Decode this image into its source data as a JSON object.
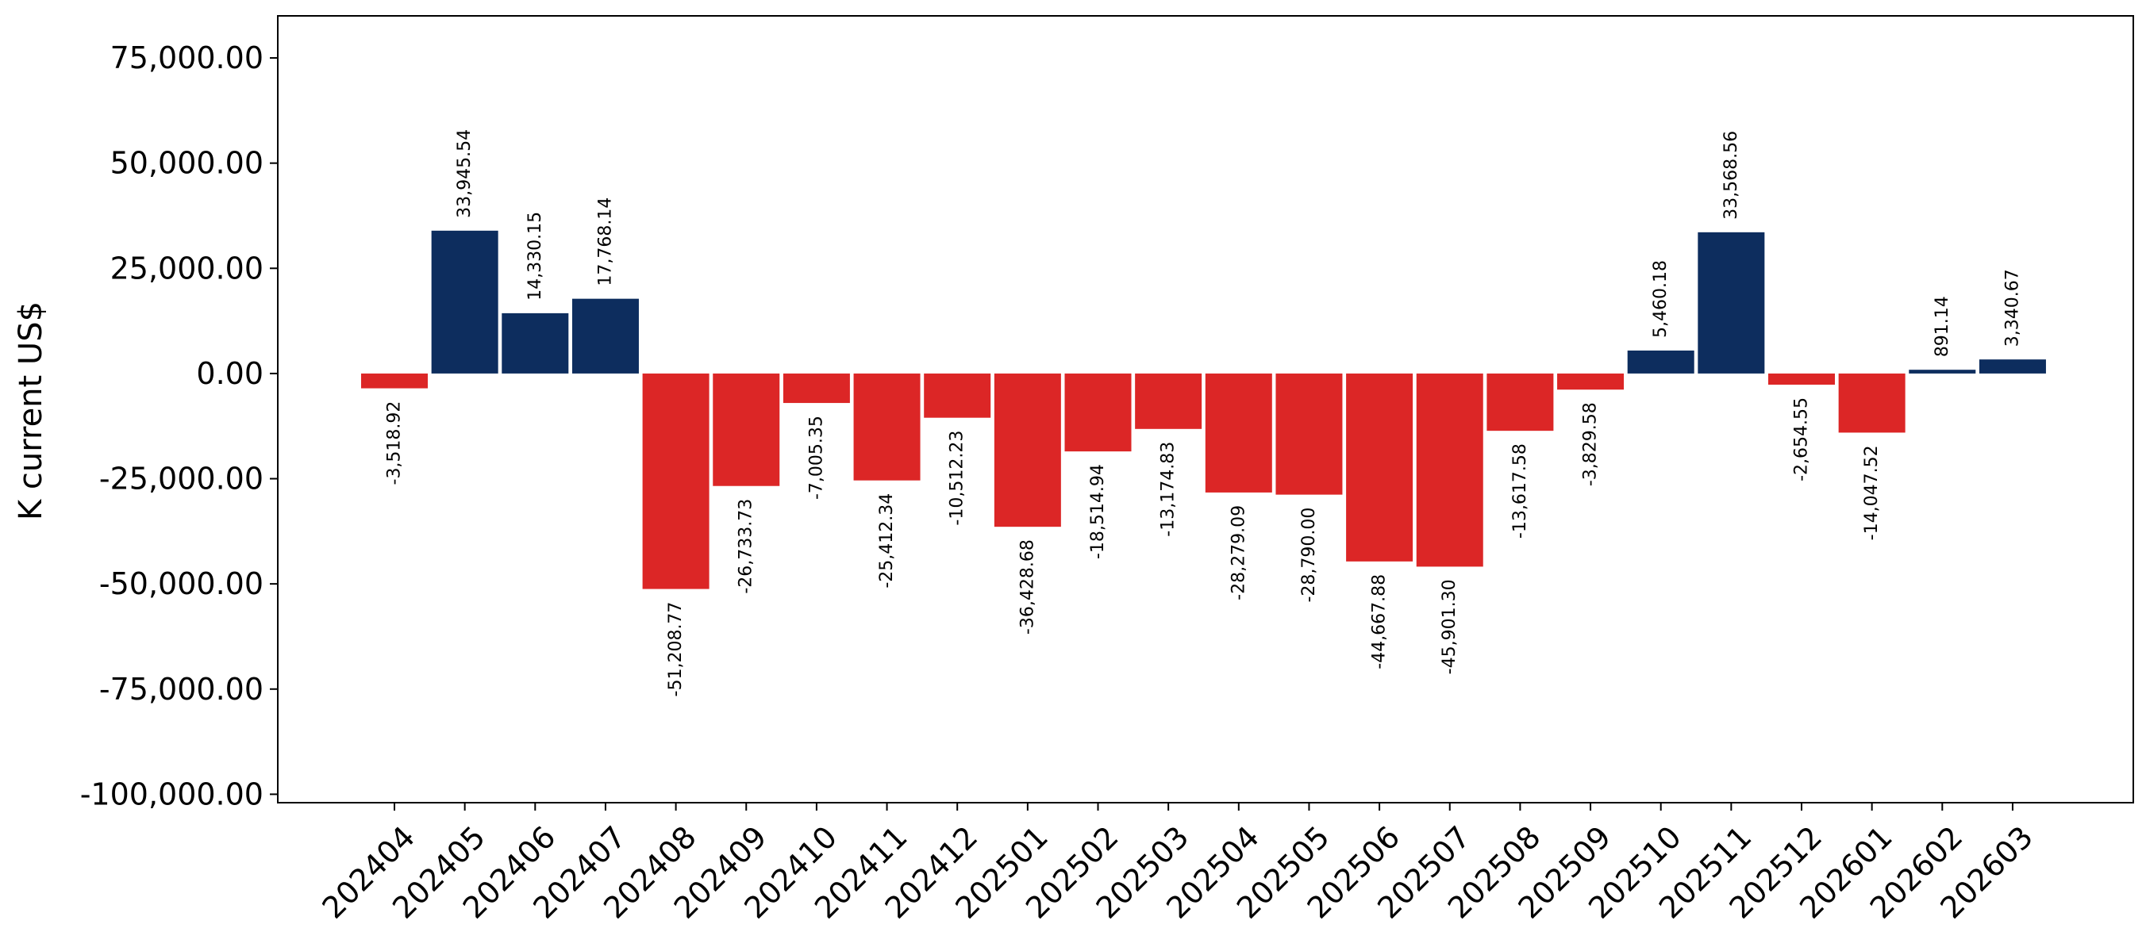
{
  "chart_data": {
    "type": "bar",
    "title": "",
    "xlabel": "",
    "ylabel": "K current US$",
    "ylim": [
      -102000,
      85000
    ],
    "yticks": [
      75000,
      50000,
      25000,
      0,
      -25000,
      -50000,
      -75000,
      -100000
    ],
    "ytick_labels": [
      "75,000.00",
      "50,000.00",
      "25,000.00",
      "0.00",
      "-25,000.00",
      "-50,000.00",
      "-75,000.00",
      "-100,000.00"
    ],
    "grid": false,
    "colors": {
      "positive": "#0d2d5e",
      "negative": "#dc2626"
    },
    "categories": [
      "202404",
      "202405",
      "202406",
      "202407",
      "202408",
      "202409",
      "202410",
      "202411",
      "202412",
      "202501",
      "202502",
      "202503",
      "202504",
      "202505",
      "202506",
      "202507",
      "202508",
      "202509",
      "202510",
      "202511",
      "202512",
      "202601",
      "202602",
      "202603"
    ],
    "values": [
      -3518.92,
      33945.54,
      14330.15,
      17768.14,
      -51208.77,
      -26733.73,
      -7005.35,
      -25412.34,
      -10512.23,
      -36428.68,
      -18514.94,
      -13174.83,
      -28279.09,
      -28790.0,
      -44667.88,
      -45901.3,
      -13617.58,
      -3829.58,
      5460.18,
      33568.56,
      -2654.55,
      -14047.52,
      891.14,
      3340.67
    ],
    "value_labels": [
      "-3,518.92",
      "33,945.54",
      "14,330.15",
      "17,768.14",
      "-51,208.77",
      "-26,733.73",
      "-7,005.35",
      "-25,412.34",
      "-10,512.23",
      "-36,428.68",
      "-18,514.94",
      "-13,174.83",
      "-28,279.09",
      "-28,790.00",
      "-44,667.88",
      "-45,901.30",
      "-13,617.58",
      "-3,829.58",
      "5,460.18",
      "33,568.56",
      "-2,654.55",
      "-14,047.52",
      "891.14",
      "3,340.67"
    ]
  }
}
